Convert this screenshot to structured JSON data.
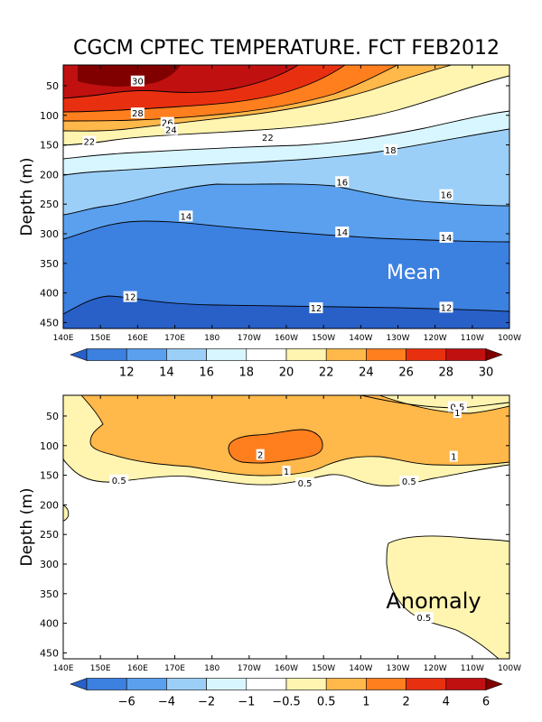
{
  "figure": {
    "title": "CGCM CPTEC TEMPERATURE. FCT FEB2012"
  },
  "chart_data": [
    {
      "type": "contour",
      "panel": "Mean",
      "label": "Mean",
      "ylabel": "Depth (m)",
      "xlabel": "",
      "x_ticks": [
        "140E",
        "150E",
        "160E",
        "170E",
        "180",
        "170W",
        "160W",
        "150W",
        "140W",
        "130W",
        "120W",
        "110W",
        "100W"
      ],
      "x_range": [
        140,
        260
      ],
      "y_ticks": [
        50,
        100,
        150,
        200,
        250,
        300,
        350,
        400,
        450
      ],
      "y_range": [
        460,
        15
      ],
      "contour_labels": [
        {
          "text": "30",
          "lon": 160,
          "depth": 42
        },
        {
          "text": "28",
          "lon": 160,
          "depth": 96
        },
        {
          "text": "26",
          "lon": 168,
          "depth": 112
        },
        {
          "text": "24",
          "lon": 169,
          "depth": 124
        },
        {
          "text": "22",
          "lon": 147,
          "depth": 144
        },
        {
          "text": "22",
          "lon": 195,
          "depth": 137
        },
        {
          "text": "18",
          "lon": 228,
          "depth": 158
        },
        {
          "text": "16",
          "lon": 215,
          "depth": 212
        },
        {
          "text": "16",
          "lon": 243,
          "depth": 234
        },
        {
          "text": "14",
          "lon": 173,
          "depth": 270
        },
        {
          "text": "14",
          "lon": 215,
          "depth": 297
        },
        {
          "text": "14",
          "lon": 243,
          "depth": 306
        },
        {
          "text": "12",
          "lon": 158,
          "depth": 406
        },
        {
          "text": "12",
          "lon": 208,
          "depth": 425
        },
        {
          "text": "12",
          "lon": 243,
          "depth": 424
        }
      ],
      "colorbar": {
        "ticks": [
          "12",
          "14",
          "16",
          "18",
          "20",
          "22",
          "24",
          "26",
          "28",
          "30"
        ],
        "colors": [
          "#2860c8",
          "#3c80e0",
          "#5aa0ee",
          "#9ccff8",
          "#d8f6ff",
          "#ffffff",
          "#fff4b0",
          "#ffb84a",
          "#ff7f1e",
          "#e83010",
          "#c01010",
          "#800000"
        ]
      }
    },
    {
      "type": "contour",
      "panel": "Anomaly",
      "label": "Anomaly",
      "ylabel": "Depth (m)",
      "xlabel": "",
      "x_ticks": [
        "140E",
        "150E",
        "160E",
        "170E",
        "180",
        "170W",
        "160W",
        "150W",
        "140W",
        "130W",
        "120W",
        "110W",
        "100W"
      ],
      "x_range": [
        140,
        260
      ],
      "y_ticks": [
        50,
        100,
        150,
        200,
        250,
        300,
        350,
        400,
        450
      ],
      "y_range": [
        460,
        15
      ],
      "contour_labels": [
        {
          "text": "0.5",
          "lon": 246,
          "depth": 34
        },
        {
          "text": "1",
          "lon": 246,
          "depth": 44
        },
        {
          "text": "2",
          "lon": 193,
          "depth": 115
        },
        {
          "text": "1",
          "lon": 200,
          "depth": 143
        },
        {
          "text": "1",
          "lon": 245,
          "depth": 118
        },
        {
          "text": "0.5",
          "lon": 155,
          "depth": 158
        },
        {
          "text": "0.5",
          "lon": 205,
          "depth": 163
        },
        {
          "text": "0.5",
          "lon": 233,
          "depth": 160
        },
        {
          "text": "0.5",
          "lon": 237,
          "depth": 390
        }
      ],
      "colorbar": {
        "ticks": [
          "-6",
          "-4",
          "-2",
          "-1",
          "-0.5",
          "0.5",
          "1",
          "2",
          "4",
          "6"
        ],
        "colors": [
          "#2860c8",
          "#3c80e0",
          "#5aa0ee",
          "#9ccff8",
          "#d8f6ff",
          "#ffffff",
          "#fff4b0",
          "#ffb84a",
          "#ff7f1e",
          "#e83010",
          "#c01010",
          "#800000"
        ]
      }
    }
  ]
}
